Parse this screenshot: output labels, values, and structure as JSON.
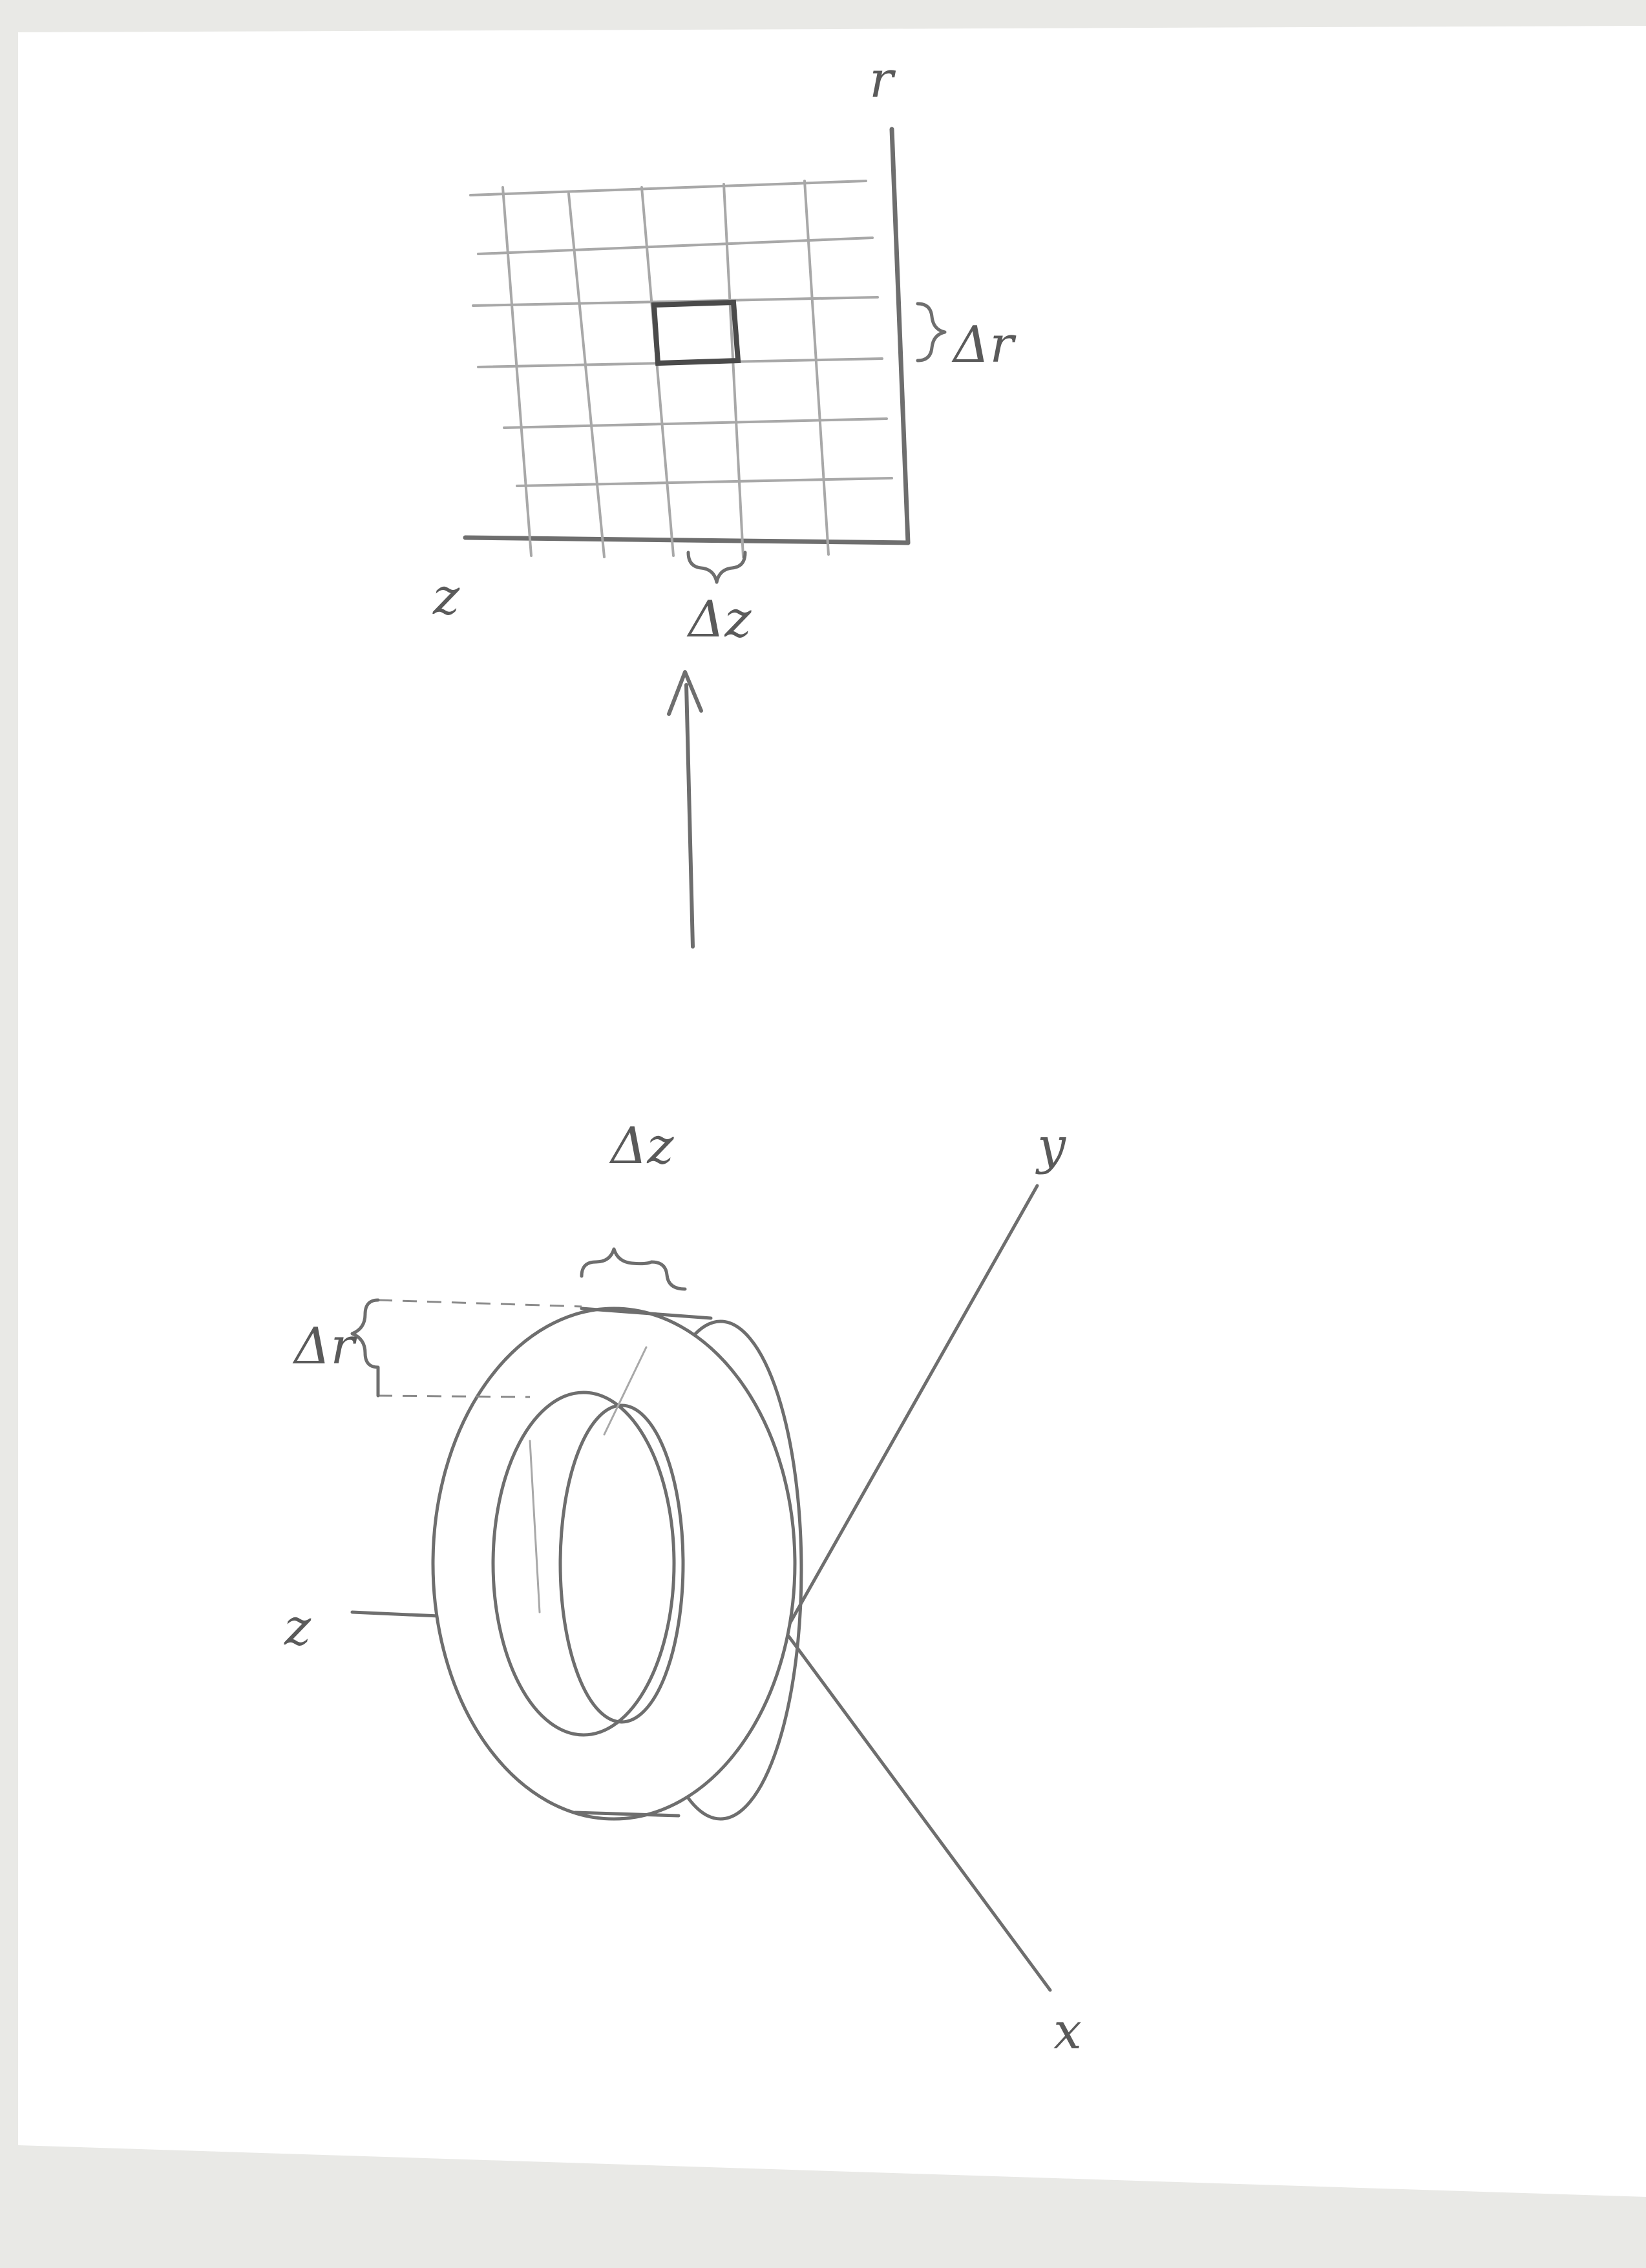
{
  "drawing": {
    "solid_view": {
      "axis_labels": {
        "z": "z",
        "y": "y",
        "x": "x"
      },
      "dimension_labels": {
        "delta_r": "Δr",
        "delta_z": "Δz"
      }
    },
    "grid_view": {
      "axis_labels": {
        "z": "z",
        "r": "r"
      },
      "dimension_labels": {
        "delta_r": "Δr",
        "delta_z": "Δz"
      }
    }
  },
  "colors": {
    "paper": "#ffffff",
    "scanner_bed": "#e9e9e6",
    "pencil": "#6e6e6e"
  }
}
